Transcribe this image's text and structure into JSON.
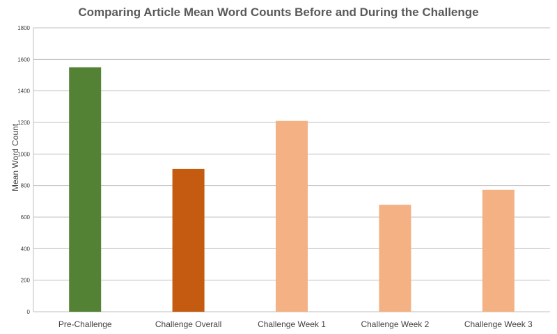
{
  "chart_data": {
    "type": "bar",
    "title": "Comparing Article Mean Word Counts Before and During the Challenge",
    "xlabel": "",
    "ylabel": "Mean Word Count",
    "categories": [
      "Pre-Challenge",
      "Challenge Overall",
      "Challenge Week 1",
      "Challenge Week 2",
      "Challenge Week 3"
    ],
    "values": [
      1550,
      905,
      1210,
      678,
      773
    ],
    "bar_colors": [
      "#548235",
      "#C55A11",
      "#F4B183",
      "#F4B183",
      "#F4B183"
    ],
    "ylim": [
      0,
      1800
    ],
    "yticks": [
      0,
      200,
      400,
      600,
      800,
      1000,
      1200,
      1400,
      1600,
      1800
    ],
    "grid": true,
    "gridline_color": "#BFBFBF",
    "legend": "none"
  }
}
